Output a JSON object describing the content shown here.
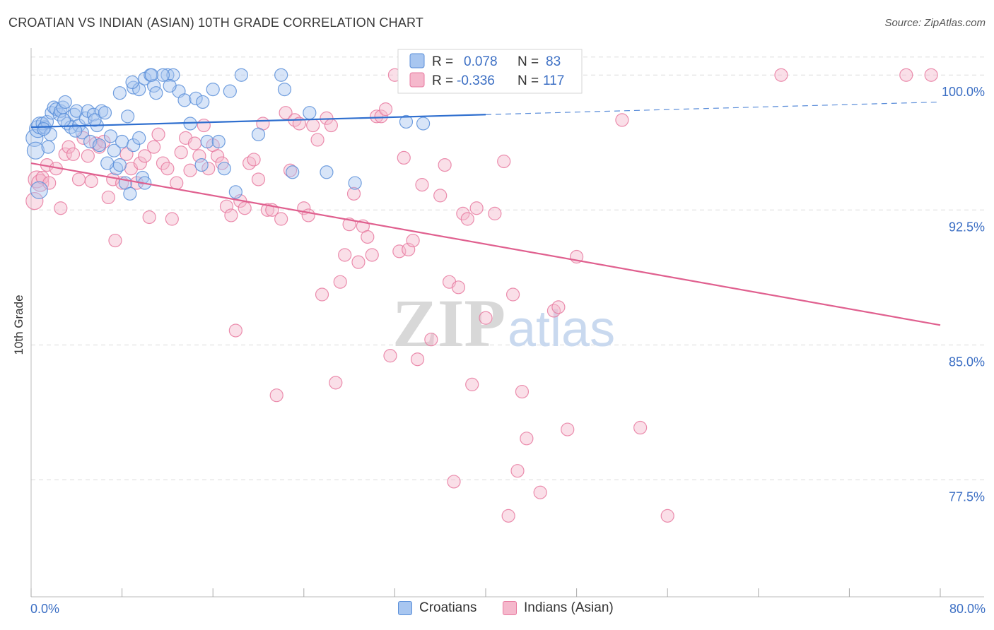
{
  "title": "CROATIAN VS INDIAN (ASIAN) 10TH GRADE CORRELATION CHART",
  "source": "Source: ZipAtlas.com",
  "watermark": {
    "zip": "ZIP",
    "atlas": "atlas"
  },
  "colors": {
    "blue": "#5b8fd9",
    "blue_fill": "#a8c6f0",
    "blue_line": "#2f6fcf",
    "pink": "#e87aa0",
    "pink_fill": "#f5b8cc",
    "pink_line": "#e0608f",
    "axis_text": "#3c6fc4",
    "grid": "#dcdcdc"
  },
  "legend": {
    "croatians": {
      "r_label": "R =",
      "r_value": "0.078",
      "n_label": "N =",
      "n_value": "83"
    },
    "indians": {
      "r_label": "R =",
      "r_value": "-0.336",
      "n_label": "N =",
      "n_value": "117"
    }
  },
  "bottom_legend": {
    "croatians": "Croatians",
    "indians": "Indians (Asian)"
  },
  "chart_data": {
    "type": "scatter",
    "title": "CROATIAN VS INDIAN (ASIAN) 10TH GRADE CORRELATION CHART",
    "xlabel": "",
    "ylabel": "10th Grade",
    "xlim": [
      0,
      80
    ],
    "ylim": [
      71.0,
      101.5
    ],
    "x_tick_labels": [
      "0.0%",
      "80.0%"
    ],
    "y_ticks": [
      77.5,
      85.0,
      92.5,
      100.0
    ],
    "y_tick_labels": [
      "77.5%",
      "85.0%",
      "92.5%",
      "100.0%"
    ],
    "grid": true,
    "series": [
      {
        "name": "Croatians",
        "R": 0.078,
        "N": 83,
        "trend": {
          "x0": 0,
          "y0": 97.1,
          "x1": 40,
          "y1": 97.8,
          "dashed_to_x": 80,
          "dashed_to_y": 98.5
        },
        "points": [
          [
            0.3,
            96.5
          ],
          [
            0.4,
            95.8
          ],
          [
            0.6,
            97.0
          ],
          [
            0.7,
            93.6
          ],
          [
            0.8,
            97.2
          ],
          [
            1.0,
            97.3
          ],
          [
            1.2,
            97.1
          ],
          [
            1.4,
            97.4
          ],
          [
            1.5,
            96.0
          ],
          [
            1.7,
            96.7
          ],
          [
            1.8,
            97.9
          ],
          [
            2.0,
            98.2
          ],
          [
            2.2,
            98.1
          ],
          [
            2.5,
            97.8
          ],
          [
            2.6,
            98.0
          ],
          [
            2.8,
            98.2
          ],
          [
            3.0,
            98.5
          ],
          [
            3.2,
            97.3
          ],
          [
            3.5,
            97.1
          ],
          [
            3.8,
            97.8
          ],
          [
            4.0,
            98.0
          ],
          [
            4.2,
            97.2
          ],
          [
            4.5,
            96.8
          ],
          [
            4.8,
            97.6
          ],
          [
            5.0,
            98.0
          ],
          [
            5.2,
            96.3
          ],
          [
            5.5,
            97.8
          ],
          [
            5.8,
            97.2
          ],
          [
            6.0,
            96.1
          ],
          [
            6.2,
            98.0
          ],
          [
            6.5,
            97.9
          ],
          [
            7.0,
            96.6
          ],
          [
            7.3,
            95.8
          ],
          [
            7.5,
            94.8
          ],
          [
            7.8,
            95.0
          ],
          [
            8.0,
            96.3
          ],
          [
            8.5,
            97.7
          ],
          [
            9.0,
            96.1
          ],
          [
            9.5,
            96.5
          ],
          [
            9.0,
            99.3
          ],
          [
            9.5,
            99.2
          ],
          [
            10.0,
            99.8
          ],
          [
            10.5,
            100.0
          ],
          [
            10.8,
            99.4
          ],
          [
            11.0,
            99.0
          ],
          [
            12.0,
            100.0
          ],
          [
            12.5,
            100.0
          ],
          [
            13.0,
            99.1
          ],
          [
            13.5,
            98.6
          ],
          [
            14.0,
            97.3
          ],
          [
            14.5,
            98.7
          ],
          [
            15.0,
            95.0
          ],
          [
            15.5,
            96.3
          ],
          [
            16.0,
            99.2
          ],
          [
            16.5,
            96.3
          ],
          [
            17.0,
            94.8
          ],
          [
            17.5,
            99.1
          ],
          [
            18.0,
            93.5
          ],
          [
            18.5,
            100.0
          ],
          [
            22.0,
            100.0
          ],
          [
            22.3,
            99.2
          ],
          [
            23.0,
            94.6
          ],
          [
            24.5,
            97.9
          ],
          [
            26.0,
            94.6
          ],
          [
            28.5,
            94.0
          ],
          [
            33.0,
            97.4
          ],
          [
            34.5,
            97.3
          ],
          [
            8.3,
            94.0
          ],
          [
            8.7,
            93.4
          ],
          [
            9.8,
            94.3
          ],
          [
            10.0,
            94.0
          ],
          [
            3.9,
            96.9
          ],
          [
            2.9,
            97.5
          ],
          [
            6.7,
            95.1
          ],
          [
            1.1,
            97.0
          ],
          [
            5.6,
            97.5
          ],
          [
            7.8,
            99.0
          ],
          [
            12.2,
            99.4
          ],
          [
            11.6,
            100.0
          ],
          [
            10.6,
            100.0
          ],
          [
            20.0,
            96.7
          ],
          [
            15.1,
            98.5
          ],
          [
            8.9,
            99.6
          ]
        ]
      },
      {
        "name": "Indians (Asian)",
        "R": -0.336,
        "N": 117,
        "trend": {
          "x0": 0,
          "y0": 95.1,
          "x1": 80,
          "y1": 86.1
        },
        "points": [
          [
            0.3,
            93.0
          ],
          [
            0.5,
            94.2
          ],
          [
            0.8,
            94.0
          ],
          [
            1.0,
            94.3
          ],
          [
            1.4,
            95.0
          ],
          [
            1.6,
            94.0
          ],
          [
            2.2,
            94.8
          ],
          [
            2.6,
            92.6
          ],
          [
            3.0,
            95.6
          ],
          [
            3.3,
            96.0
          ],
          [
            3.7,
            95.6
          ],
          [
            4.2,
            94.2
          ],
          [
            4.6,
            96.5
          ],
          [
            5.0,
            95.5
          ],
          [
            5.3,
            94.1
          ],
          [
            5.7,
            96.2
          ],
          [
            6.0,
            96.0
          ],
          [
            6.4,
            96.3
          ],
          [
            6.8,
            93.2
          ],
          [
            7.2,
            94.2
          ],
          [
            7.4,
            90.8
          ],
          [
            8.0,
            94.0
          ],
          [
            8.4,
            95.6
          ],
          [
            8.8,
            94.8
          ],
          [
            9.3,
            94.0
          ],
          [
            9.6,
            95.1
          ],
          [
            10.0,
            95.5
          ],
          [
            10.4,
            92.1
          ],
          [
            10.8,
            96.0
          ],
          [
            11.2,
            96.7
          ],
          [
            11.6,
            95.1
          ],
          [
            12.0,
            94.8
          ],
          [
            12.4,
            92.0
          ],
          [
            12.8,
            94.0
          ],
          [
            13.2,
            95.7
          ],
          [
            13.6,
            96.5
          ],
          [
            14.0,
            94.7
          ],
          [
            14.4,
            96.2
          ],
          [
            14.8,
            95.5
          ],
          [
            15.2,
            97.2
          ],
          [
            15.6,
            94.8
          ],
          [
            16.0,
            96.1
          ],
          [
            16.4,
            95.5
          ],
          [
            16.8,
            95.1
          ],
          [
            17.2,
            92.7
          ],
          [
            17.6,
            92.2
          ],
          [
            18.0,
            85.8
          ],
          [
            18.4,
            93.0
          ],
          [
            18.8,
            92.6
          ],
          [
            19.2,
            95.1
          ],
          [
            19.6,
            95.3
          ],
          [
            20.0,
            94.2
          ],
          [
            20.4,
            97.3
          ],
          [
            20.8,
            92.5
          ],
          [
            21.2,
            92.5
          ],
          [
            21.6,
            82.2
          ],
          [
            22.0,
            92.0
          ],
          [
            22.4,
            97.9
          ],
          [
            22.8,
            94.7
          ],
          [
            23.2,
            97.5
          ],
          [
            23.6,
            97.3
          ],
          [
            24.0,
            92.6
          ],
          [
            24.4,
            92.2
          ],
          [
            24.8,
            97.2
          ],
          [
            25.2,
            96.4
          ],
          [
            25.6,
            87.8
          ],
          [
            26.0,
            97.6
          ],
          [
            26.4,
            97.2
          ],
          [
            26.8,
            82.9
          ],
          [
            27.2,
            88.5
          ],
          [
            27.6,
            90.0
          ],
          [
            28.0,
            91.7
          ],
          [
            28.4,
            93.4
          ],
          [
            28.8,
            89.6
          ],
          [
            29.2,
            91.6
          ],
          [
            29.6,
            91.0
          ],
          [
            30.0,
            90.0
          ],
          [
            30.4,
            97.7
          ],
          [
            30.8,
            97.7
          ],
          [
            31.2,
            98.1
          ],
          [
            31.6,
            84.4
          ],
          [
            32.0,
            100.0
          ],
          [
            32.4,
            90.2
          ],
          [
            32.8,
            95.4
          ],
          [
            33.2,
            90.3
          ],
          [
            33.6,
            90.8
          ],
          [
            34.0,
            84.2
          ],
          [
            34.4,
            93.9
          ],
          [
            35.2,
            85.3
          ],
          [
            36.0,
            93.3
          ],
          [
            36.4,
            95.0
          ],
          [
            36.8,
            88.5
          ],
          [
            37.2,
            77.4
          ],
          [
            37.6,
            88.2
          ],
          [
            38.0,
            92.3
          ],
          [
            38.4,
            92.0
          ],
          [
            38.8,
            82.8
          ],
          [
            39.2,
            92.6
          ],
          [
            40.0,
            86.5
          ],
          [
            40.8,
            92.3
          ],
          [
            41.6,
            95.2
          ],
          [
            42.0,
            75.5
          ],
          [
            42.4,
            87.8
          ],
          [
            42.8,
            78.0
          ],
          [
            43.2,
            82.4
          ],
          [
            43.6,
            79.8
          ],
          [
            44.8,
            76.8
          ],
          [
            46.0,
            86.9
          ],
          [
            46.4,
            87.1
          ],
          [
            47.2,
            80.3
          ],
          [
            48.0,
            89.9
          ],
          [
            52.0,
            97.5
          ],
          [
            53.6,
            80.4
          ],
          [
            56.0,
            75.5
          ],
          [
            66.0,
            100.0
          ],
          [
            77.0,
            100.0
          ],
          [
            79.2,
            100.0
          ]
        ]
      }
    ]
  }
}
